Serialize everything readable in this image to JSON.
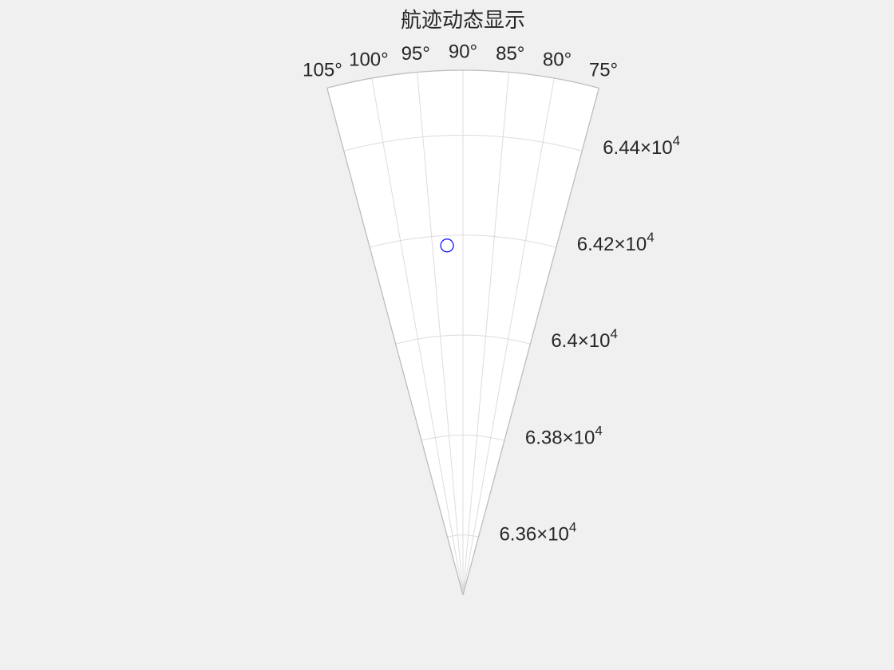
{
  "chart_data": {
    "type": "scatter",
    "projection": "polar",
    "title": "航迹动态显示",
    "theta_range_deg": [
      75,
      105
    ],
    "theta_ticks_deg": [
      105,
      100,
      95,
      90,
      85,
      80,
      75
    ],
    "theta_tick_labels": [
      "105°",
      "100°",
      "95°",
      "90°",
      "85°",
      "80°",
      "75°"
    ],
    "r_range": [
      63480,
      64530
    ],
    "r_ticks": [
      63600,
      63800,
      64000,
      64200,
      64400
    ],
    "r_tick_labels": [
      {
        "mantissa": "6.36",
        "times": "×10",
        "exponent": "4"
      },
      {
        "mantissa": "6.38",
        "times": "×10",
        "exponent": "4"
      },
      {
        "mantissa": "6.4",
        "times": "×10",
        "exponent": "4"
      },
      {
        "mantissa": "6.42",
        "times": "×10",
        "exponent": "4"
      },
      {
        "mantissa": "6.44",
        "times": "×10",
        "exponent": "4"
      }
    ],
    "grid": true,
    "background": "#ffffff",
    "figure_background": "#f0f0f0",
    "points": [
      {
        "theta_deg": 92.6,
        "r": 64180,
        "marker": "circle",
        "color": "#0000ff"
      }
    ]
  }
}
